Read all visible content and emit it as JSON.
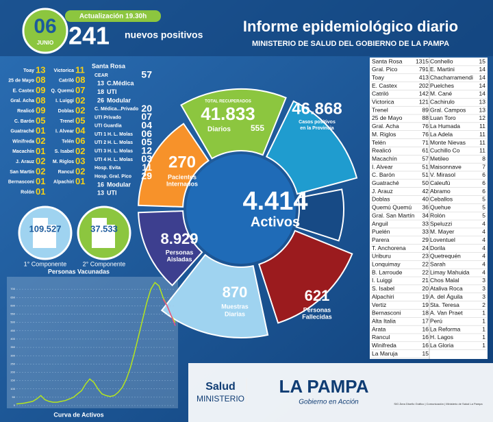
{
  "header": {
    "day": "06",
    "month": "JUNIO",
    "update": "Actualización 19.30h",
    "new_positives": "241",
    "new_positives_label": "nuevos positivos",
    "title": "Informe epidemiológico diario",
    "subtitle": "MINISTERIO DE SALUD DEL GOBIERNO DE LA PAMPA"
  },
  "localities_new": {
    "col1": [
      [
        "Toay",
        "13"
      ],
      [
        "25 de Mayo",
        "08"
      ],
      [
        "E. Castex",
        "09"
      ],
      [
        "Gral. Acha",
        "08"
      ],
      [
        "Realicó",
        "09"
      ],
      [
        "C. Barón",
        "05"
      ],
      [
        "Guatraché",
        "01"
      ],
      [
        "Winifreda",
        "02"
      ],
      [
        "Macachín",
        "01"
      ],
      [
        "J. Arauz",
        "02"
      ],
      [
        "San Martín",
        "02"
      ],
      [
        "Bernasconi",
        "01"
      ],
      [
        "Rolón",
        "01"
      ]
    ],
    "col2": [
      [
        "Victorica",
        "11"
      ],
      [
        "Catriló",
        "08"
      ],
      [
        "Q. Quemú",
        "07"
      ],
      [
        "I. Luiggi",
        "02"
      ],
      [
        "Doblas",
        "02"
      ],
      [
        "Trenel",
        "05"
      ],
      [
        "I. Alvear",
        "04"
      ],
      [
        "Telén",
        "06"
      ],
      [
        "S. Isabel",
        "02"
      ],
      [
        "M. Riglos",
        "03"
      ],
      [
        "Rancul",
        "02"
      ],
      [
        "Alpachiri",
        "01"
      ]
    ]
  },
  "hospitals": {
    "city": "Santa Rosa",
    "rows": [
      [
        "CEAR",
        "57"
      ],
      [
        "13",
        "C.Médica"
      ],
      [
        "18",
        "UTI"
      ],
      [
        "26",
        "Modular"
      ],
      [
        "C. Médica...Privado",
        "20"
      ],
      [
        "UTI Privado",
        "07"
      ],
      [
        "UTI Guardia",
        "04"
      ],
      [
        "UTI 1 H. L. Molas",
        "06"
      ],
      [
        "UTI 2 H. L. Molas",
        "05"
      ],
      [
        "UTI 3 H. L. Molas",
        "12"
      ],
      [
        "UTI 4 H. L. Molas",
        "03"
      ],
      [
        "Hosp. Evita",
        "11"
      ],
      [
        "Hosp. Gral. Pico",
        "29"
      ],
      [
        "16",
        "Modular"
      ],
      [
        "13",
        "UTI"
      ]
    ]
  },
  "vaccination": {
    "first": {
      "value": "109.527",
      "label": "1° Componente"
    },
    "second": {
      "value": "37.533",
      "label": "2° Componente"
    }
  },
  "ring": {
    "recovered_label": "TOTAL RECUPERADOS",
    "recovered": "41.833",
    "daily_label": "Diarios",
    "daily": "555",
    "cases": "46.868",
    "cases_label": [
      "Casos positivos",
      "en la Provincia"
    ],
    "hospitalized": "270",
    "hospitalized_label": [
      "Pacientes",
      "Internados"
    ],
    "active": "4.414",
    "active_label": "Activos",
    "isolated": "8.929",
    "isolated_label": [
      "Personas",
      "Aisladas"
    ],
    "samples": "870",
    "samples_label": [
      "Muestras",
      "Diarias"
    ],
    "deaths": "621",
    "deaths_label": [
      "Personas",
      "Fallecidas"
    ]
  },
  "chart_data": {
    "type": "line",
    "title": "Personas Vacunadas",
    "xlabel": "Curva de Activos",
    "ylim": [
      0,
      750
    ],
    "yticks": [
      0,
      50,
      100,
      150,
      200,
      250,
      300,
      350,
      400,
      450,
      500,
      550,
      600,
      650,
      700
    ],
    "grid": true,
    "series": [
      {
        "color": "#b5e61d",
        "values": [
          10,
          12,
          15,
          20,
          25,
          40,
          60,
          35,
          25,
          20,
          20,
          25,
          30,
          40,
          50,
          70,
          90,
          130,
          160,
          140,
          100,
          70,
          60,
          55,
          60,
          80,
          110,
          160,
          230,
          320,
          420,
          520,
          620,
          700,
          740,
          720,
          650,
          600,
          540,
          500
        ]
      },
      {
        "color": "#e8508a",
        "values": [
          null,
          null,
          null,
          null,
          null,
          null,
          null,
          null,
          null,
          null,
          null,
          null,
          null,
          null,
          null,
          null,
          null,
          null,
          null,
          null,
          null,
          null,
          null,
          null,
          null,
          null,
          null,
          null,
          null,
          null,
          null,
          null,
          null,
          null,
          null,
          null,
          640,
          600,
          540,
          480
        ]
      }
    ]
  },
  "table": {
    "col1": [
      [
        "Santa Rosa",
        1315
      ],
      [
        "Gral. Pico",
        791
      ],
      [
        "Toay",
        413
      ],
      [
        "E. Castex",
        202
      ],
      [
        "Catriló",
        142
      ],
      [
        "Victorica",
        121
      ],
      [
        "Trenel",
        89
      ],
      [
        "25 de Mayo",
        88
      ],
      [
        "Gral. Acha",
        76
      ],
      [
        "M. Riglos",
        76
      ],
      [
        "Telén",
        71
      ],
      [
        "Realicó",
        61
      ],
      [
        "Macachín",
        57
      ],
      [
        "I. Alvear",
        51
      ],
      [
        "C. Barón",
        51
      ],
      [
        "Guatraché",
        50
      ],
      [
        "J. Arauz",
        42
      ],
      [
        "Doblas",
        40
      ],
      [
        "Quemú Quemú",
        36
      ],
      [
        "Gral. San Martín",
        34
      ],
      [
        "Anguil",
        33
      ],
      [
        "Puelén",
        33
      ],
      [
        "Parera",
        29
      ],
      [
        "T. Anchorena",
        24
      ],
      [
        "Uriburu",
        23
      ],
      [
        "Lonquimay",
        22
      ],
      [
        "B. Larroude",
        22
      ],
      [
        "I. Luiggi",
        21
      ],
      [
        "S. Isabel",
        20
      ],
      [
        "Alpachiri",
        19
      ],
      [
        "Vertiz",
        19
      ],
      [
        "Bernasconi",
        18
      ],
      [
        "Alta Italia",
        17
      ],
      [
        "Arata",
        16
      ],
      [
        "Rancul",
        16
      ],
      [
        "Winifreda",
        16
      ],
      [
        "La Maruja",
        15
      ]
    ],
    "col2": [
      [
        "Conhello",
        15
      ],
      [
        "E. Martini",
        14
      ],
      [
        "Chacharramendi",
        14
      ],
      [
        "Puelches",
        14
      ],
      [
        "M. Cané",
        14
      ],
      [
        "Cachirulo",
        13
      ],
      [
        "Gral. Campos",
        13
      ],
      [
        "Luan Toro",
        12
      ],
      [
        "La Humada",
        11
      ],
      [
        "La Adela",
        11
      ],
      [
        "Monte Nievas",
        11
      ],
      [
        "Cuchillo Co",
        11
      ],
      [
        "Metileo",
        8
      ],
      [
        "Maisonnave",
        7
      ],
      [
        "V. Mirasol",
        6
      ],
      [
        "Caleufú",
        6
      ],
      [
        "Abramo",
        6
      ],
      [
        "Ceballos",
        5
      ],
      [
        "Quehue",
        5
      ],
      [
        "Rolón",
        5
      ],
      [
        "Speluzzi",
        4
      ],
      [
        "M. Mayer",
        4
      ],
      [
        "Loventuel",
        4
      ],
      [
        "Dorila",
        4
      ],
      [
        "Quetrequén",
        4
      ],
      [
        "Sarah",
        4
      ],
      [
        "Limay Mahuida",
        4
      ],
      [
        "Chos Malal",
        3
      ],
      [
        "Ataliva Roca",
        3
      ],
      [
        "A. del Águila",
        3
      ],
      [
        "Sta. Teresa",
        2
      ],
      [
        "A. Van Praet",
        1
      ],
      [
        "Perú",
        1
      ],
      [
        "La Reforma",
        1
      ],
      [
        "H. Lagos",
        1
      ],
      [
        "La Gloria",
        1
      ]
    ]
  },
  "footer": {
    "salud": "Salud",
    "ministerio": "MINISTERIO",
    "province": "LA PAMPA",
    "motto": "Gobierno en Acción",
    "credits": "SIG Área Diseño Gráfico | Comunicación | Ministerio de Salud La Pampa"
  }
}
